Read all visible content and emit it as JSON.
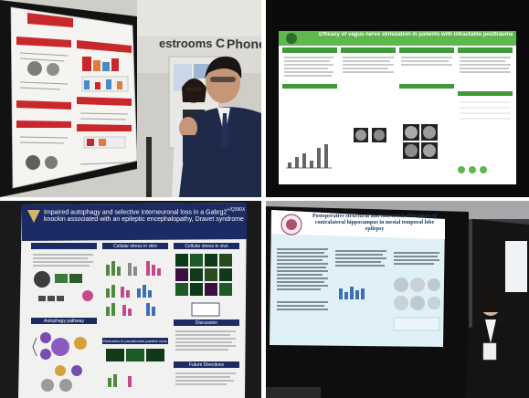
{
  "panels": {
    "top_left": {
      "signage": {
        "left_word": "estrooms",
        "right_word": "Phone",
        "right_glyph": "C"
      },
      "poster_section_heads": [
        "BACKGROUND",
        "METHODS",
        "RESULTS"
      ]
    },
    "top_right": {
      "poster_title": "Efficacy of vagus nerve stimulation in patients with intractable posttraumatic epilepsy"
    },
    "bottom_left": {
      "poster_title_line1": "Impaired autophagy and selective interneuronal loss in a Gabrg2",
      "poster_title_sup": "+/Q390X",
      "poster_title_line2": "knockin associated with an epileptic encephalopathy, Dravet syndrome",
      "sections": {
        "cell_stress_vitro": "Cellular stress in vitro",
        "cell_stress_vivo": "Cellular stress in vivo",
        "autophagy": "Autophagy pathway",
        "discussion": "Discussion",
        "reduction": "Reduction in parvalbumin-positive neurons",
        "future": "Future Directions"
      }
    },
    "bottom_right": {
      "poster_title": "Postoperative structural and functional alterations of contralateral hippocampus in mesial temporal lobe epilepsy"
    }
  },
  "colors": {
    "poster_red": "#c8282b",
    "poster_green": "#3f9a3a",
    "poster_navy": "#1c2b63",
    "wall_gray": "#d8d6d0",
    "board_black": "#0c0c0c"
  }
}
